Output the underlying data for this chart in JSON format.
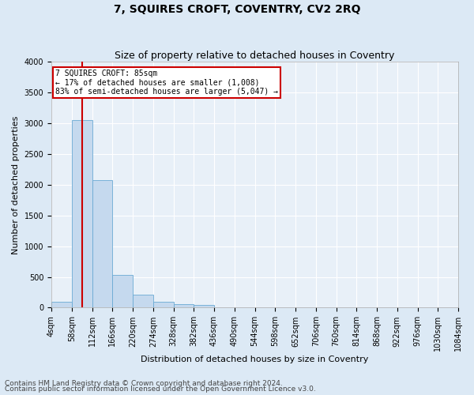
{
  "title": "7, SQUIRES CROFT, COVENTRY, CV2 2RQ",
  "subtitle": "Size of property relative to detached houses in Coventry",
  "xlabel": "Distribution of detached houses by size in Coventry",
  "ylabel": "Number of detached properties",
  "footer_line1": "Contains HM Land Registry data © Crown copyright and database right 2024.",
  "footer_line2": "Contains public sector information licensed under the Open Government Licence v3.0.",
  "annotation_line1": "7 SQUIRES CROFT: 85sqm",
  "annotation_line2": "← 17% of detached houses are smaller (1,008)",
  "annotation_line3": "83% of semi-detached houses are larger (5,047) →",
  "bin_edges": [
    4,
    58,
    112,
    166,
    220,
    274,
    328,
    382,
    436,
    490,
    544,
    598,
    652,
    706,
    760,
    814,
    868,
    922,
    976,
    1030,
    1084
  ],
  "bar_values": [
    90,
    3050,
    2080,
    530,
    210,
    90,
    55,
    45,
    10,
    0,
    0,
    0,
    0,
    0,
    0,
    0,
    0,
    0,
    0,
    0
  ],
  "bar_color": "#c5d9ee",
  "bar_edge_color": "#6aaad4",
  "vline_color": "#cc0000",
  "vline_x": 85,
  "ylim": [
    0,
    4000
  ],
  "yticks": [
    0,
    500,
    1000,
    1500,
    2000,
    2500,
    3000,
    3500,
    4000
  ],
  "xlim_left": 4,
  "xlim_right": 1084,
  "bg_color": "#dce9f5",
  "plot_bg_color": "#e8f0f8",
  "grid_color": "#ffffff",
  "annotation_box_color": "#ffffff",
  "annotation_box_edge": "#cc0000",
  "title_fontsize": 10,
  "subtitle_fontsize": 9,
  "axis_label_fontsize": 8,
  "tick_fontsize": 7,
  "annotation_fontsize": 7,
  "footer_fontsize": 6.5
}
